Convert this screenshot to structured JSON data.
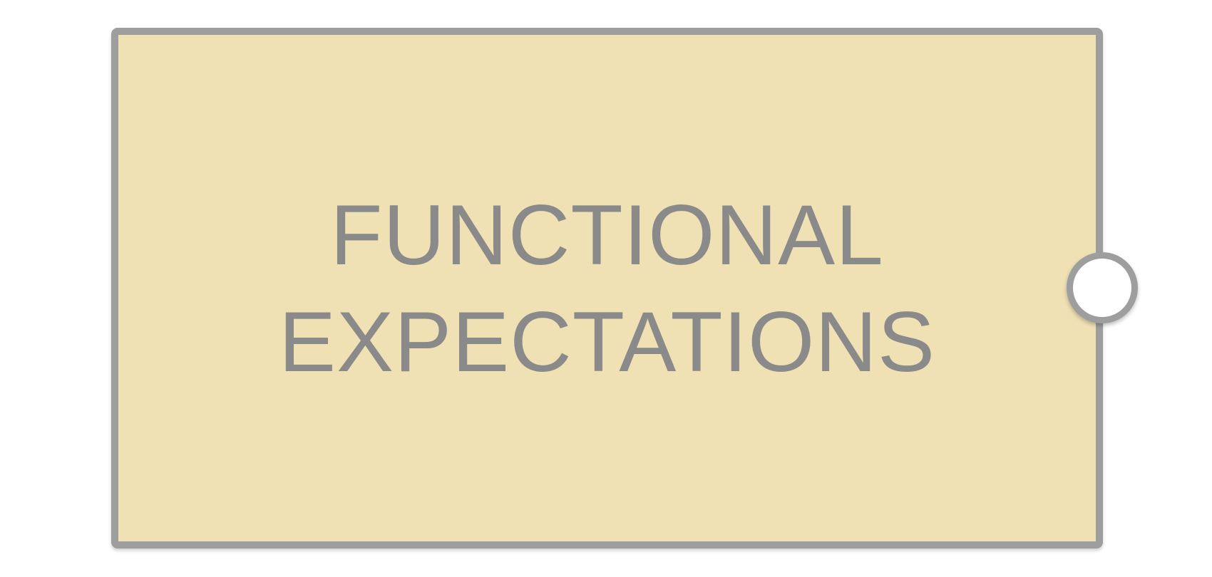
{
  "node": {
    "label_line_1": "FUNCTIONAL",
    "label_line_2": "EXPECTATIONS",
    "fill_color": "#efe1b4",
    "border_color": "#9e9e9e",
    "text_color": "#8a8a8a"
  },
  "connector": {
    "fill_color": "#ffffff",
    "border_color": "#9e9e9e"
  }
}
